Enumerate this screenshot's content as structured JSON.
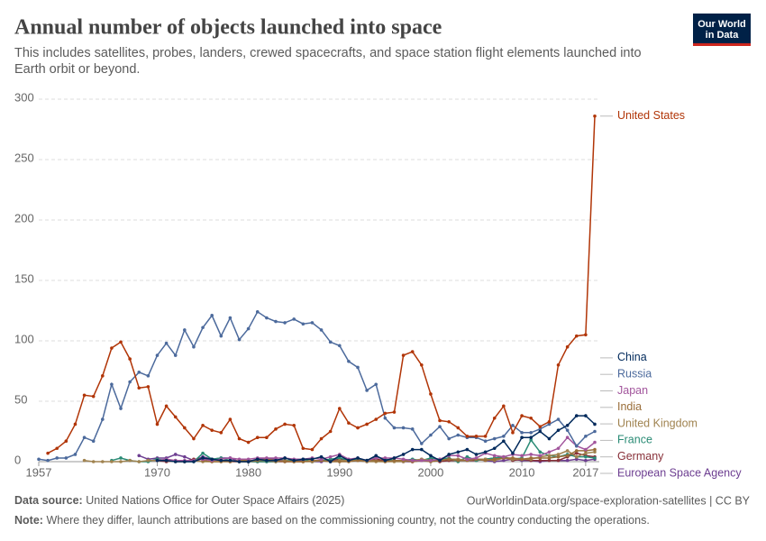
{
  "logo": {
    "line1": "Our World",
    "line2": "in Data"
  },
  "footer": {
    "source_label": "Data source:",
    "source": "United Nations Office for Outer Space Affairs (2025)",
    "url": "OurWorldinData.org/space-exploration-satellites | CC BY",
    "note_label": "Note:",
    "note": "Where they differ, launch attributions are based on the commissioning country, not the country conducting the operations."
  },
  "chart_data": {
    "type": "line",
    "title": "Annual number of objects launched into space",
    "subtitle": "This includes satellites, probes, landers, crewed spacecrafts, and space station flight elements launched into Earth orbit or beyond.",
    "x": [
      1957,
      1958,
      1959,
      1960,
      1961,
      1962,
      1963,
      1964,
      1965,
      1966,
      1967,
      1968,
      1969,
      1970,
      1971,
      1972,
      1973,
      1974,
      1975,
      1976,
      1977,
      1978,
      1979,
      1980,
      1981,
      1982,
      1983,
      1984,
      1985,
      1986,
      1987,
      1988,
      1989,
      1990,
      1991,
      1992,
      1993,
      1994,
      1995,
      1996,
      1997,
      1998,
      1999,
      2000,
      2001,
      2002,
      2003,
      2004,
      2005,
      2006,
      2007,
      2008,
      2009,
      2010,
      2011,
      2012,
      2013,
      2014,
      2015,
      2016,
      2017,
      2018
    ],
    "xlim": [
      1957,
      2018
    ],
    "xticks": [
      1957,
      1970,
      1980,
      1990,
      2000,
      2010,
      2017
    ],
    "ylim": [
      0,
      300
    ],
    "yticks": [
      0,
      50,
      100,
      150,
      200,
      250,
      300
    ],
    "grid": true,
    "series": [
      {
        "name": "United States",
        "color": "#b13507",
        "values": [
          null,
          7,
          11,
          17,
          31,
          55,
          54,
          71,
          94,
          99,
          85,
          61,
          62,
          31,
          46,
          37,
          28,
          19,
          30,
          26,
          24,
          35,
          19,
          16,
          20,
          20,
          27,
          31,
          30,
          11,
          10,
          19,
          25,
          44,
          32,
          28,
          31,
          35,
          40,
          41,
          88,
          91,
          80,
          56,
          34,
          33,
          28,
          21,
          21,
          21,
          36,
          46,
          24,
          38,
          36,
          29,
          33,
          80,
          95,
          104,
          105,
          286
        ]
      },
      {
        "name": "China",
        "color": "#00295b",
        "values": [
          null,
          null,
          null,
          null,
          null,
          null,
          null,
          null,
          null,
          null,
          null,
          null,
          null,
          1,
          1,
          0,
          0,
          0,
          3,
          2,
          1,
          1,
          0,
          0,
          2,
          1,
          1,
          3,
          1,
          2,
          2,
          4,
          0,
          5,
          1,
          3,
          1,
          5,
          1,
          3,
          6,
          10,
          10,
          5,
          1,
          6,
          8,
          10,
          6,
          8,
          11,
          17,
          7,
          20,
          20,
          25,
          19,
          26,
          30,
          38,
          38,
          31
        ]
      },
      {
        "name": "Russia",
        "color": "#4c6a9c",
        "values": [
          2,
          1,
          3,
          3,
          6,
          20,
          17,
          35,
          64,
          44,
          66,
          74,
          71,
          88,
          98,
          88,
          109,
          95,
          111,
          121,
          104,
          119,
          101,
          110,
          124,
          119,
          116,
          115,
          118,
          114,
          115,
          109,
          99,
          96,
          83,
          78,
          59,
          64,
          36,
          28,
          28,
          27,
          15,
          22,
          29,
          19,
          22,
          20,
          20,
          17,
          19,
          21,
          30,
          24,
          24,
          27,
          31,
          35,
          26,
          13,
          21,
          25
        ]
      },
      {
        "name": "Japan",
        "color": "#a2559c",
        "values": [
          null,
          null,
          null,
          null,
          null,
          null,
          null,
          null,
          null,
          null,
          null,
          null,
          null,
          1,
          2,
          1,
          1,
          1,
          2,
          1,
          2,
          3,
          2,
          2,
          3,
          3,
          3,
          3,
          2,
          2,
          3,
          2,
          4,
          6,
          2,
          3,
          1,
          3,
          3,
          3,
          2,
          1,
          1,
          1,
          2,
          5,
          5,
          2,
          3,
          7,
          5,
          4,
          6,
          5,
          6,
          5,
          8,
          11,
          20,
          13,
          10,
          16
        ]
      },
      {
        "name": "India",
        "color": "#996d39",
        "values": [
          null,
          null,
          null,
          null,
          null,
          null,
          null,
          null,
          null,
          null,
          null,
          null,
          null,
          null,
          null,
          null,
          null,
          null,
          1,
          0,
          0,
          0,
          1,
          1,
          1,
          2,
          1,
          0,
          0,
          0,
          1,
          1,
          0,
          0,
          0,
          1,
          1,
          1,
          0,
          1,
          1,
          0,
          1,
          0,
          1,
          2,
          1,
          1,
          2,
          1,
          2,
          3,
          3,
          2,
          3,
          3,
          3,
          4,
          5,
          9,
          9,
          10
        ]
      },
      {
        "name": "United Kingdom",
        "color": "#a08350",
        "values": [
          null,
          null,
          null,
          null,
          null,
          1,
          0,
          0,
          0,
          0,
          1,
          0,
          1,
          1,
          1,
          0,
          0,
          1,
          0,
          0,
          0,
          1,
          0,
          0,
          1,
          1,
          0,
          1,
          0,
          0,
          0,
          1,
          0,
          1,
          1,
          1,
          0,
          0,
          0,
          0,
          0,
          1,
          2,
          1,
          1,
          2,
          2,
          1,
          2,
          2,
          1,
          3,
          2,
          2,
          2,
          4,
          5,
          6,
          9,
          4,
          7,
          8
        ]
      },
      {
        "name": "France",
        "color": "#2a8b75",
        "values": [
          null,
          null,
          null,
          null,
          null,
          null,
          null,
          null,
          1,
          3,
          1,
          0,
          0,
          2,
          1,
          1,
          0,
          0,
          7,
          2,
          3,
          1,
          0,
          0,
          0,
          0,
          0,
          1,
          1,
          2,
          0,
          1,
          2,
          3,
          1,
          2,
          1,
          4,
          2,
          1,
          1,
          2,
          1,
          3,
          2,
          3,
          0,
          4,
          1,
          2,
          3,
          4,
          2,
          3,
          18,
          8,
          5,
          4,
          6,
          4,
          4,
          3
        ]
      },
      {
        "name": "Germany",
        "color": "#883039",
        "values": [
          null,
          null,
          null,
          null,
          null,
          null,
          null,
          null,
          null,
          null,
          null,
          null,
          1,
          1,
          0,
          1,
          0,
          2,
          2,
          2,
          1,
          0,
          0,
          0,
          0,
          0,
          0,
          0,
          0,
          0,
          1,
          1,
          0,
          2,
          1,
          1,
          0,
          2,
          1,
          1,
          1,
          0,
          1,
          2,
          0,
          1,
          1,
          1,
          1,
          2,
          3,
          4,
          1,
          2,
          1,
          1,
          1,
          1,
          4,
          7,
          5,
          4
        ]
      },
      {
        "name": "European Space Agency",
        "color": "#6d3e91",
        "values": [
          null,
          null,
          null,
          null,
          null,
          null,
          null,
          null,
          null,
          null,
          null,
          5,
          2,
          3,
          3,
          6,
          4,
          1,
          4,
          2,
          3,
          3,
          0,
          0,
          2,
          2,
          2,
          1,
          1,
          1,
          0,
          0,
          2,
          2,
          1,
          1,
          1,
          1,
          1,
          1,
          0,
          0,
          2,
          1,
          1,
          2,
          2,
          1,
          2,
          1,
          0,
          1,
          2,
          1,
          1,
          0,
          1,
          1,
          1,
          2,
          1,
          2
        ]
      }
    ]
  }
}
